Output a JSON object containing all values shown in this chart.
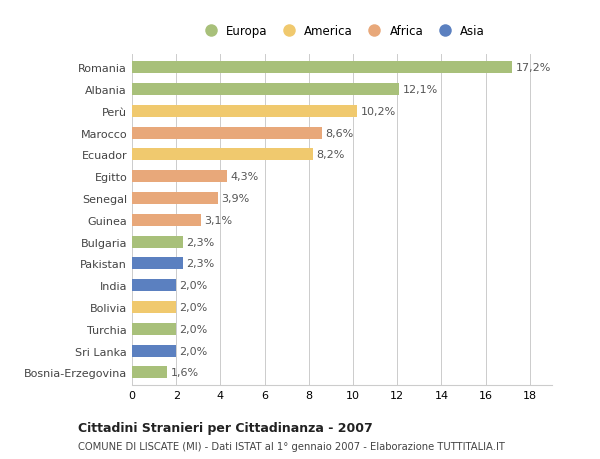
{
  "countries": [
    "Romania",
    "Albania",
    "Perù",
    "Marocco",
    "Ecuador",
    "Egitto",
    "Senegal",
    "Guinea",
    "Bulgaria",
    "Pakistan",
    "India",
    "Bolivia",
    "Turchia",
    "Sri Lanka",
    "Bosnia-Erzegovina"
  ],
  "values": [
    17.2,
    12.1,
    10.2,
    8.6,
    8.2,
    4.3,
    3.9,
    3.1,
    2.3,
    2.3,
    2.0,
    2.0,
    2.0,
    2.0,
    1.6
  ],
  "labels": [
    "17,2%",
    "12,1%",
    "10,2%",
    "8,6%",
    "8,2%",
    "4,3%",
    "3,9%",
    "3,1%",
    "2,3%",
    "2,3%",
    "2,0%",
    "2,0%",
    "2,0%",
    "2,0%",
    "1,6%"
  ],
  "continents": [
    "Europa",
    "Europa",
    "America",
    "Africa",
    "America",
    "Africa",
    "Africa",
    "Africa",
    "Europa",
    "Asia",
    "Asia",
    "America",
    "Europa",
    "Asia",
    "Europa"
  ],
  "colors": {
    "Europa": "#a8c07a",
    "America": "#f0c96e",
    "Africa": "#e8a87a",
    "Asia": "#5b80c0"
  },
  "legend_order": [
    "Europa",
    "America",
    "Africa",
    "Asia"
  ],
  "title": "Cittadini Stranieri per Cittadinanza - 2007",
  "subtitle": "COMUNE DI LISCATE (MI) - Dati ISTAT al 1° gennaio 2007 - Elaborazione TUTTITALIA.IT",
  "xlim": [
    0,
    19
  ],
  "xticks": [
    0,
    2,
    4,
    6,
    8,
    10,
    12,
    14,
    16,
    18
  ],
  "background_color": "#ffffff",
  "grid_color": "#cccccc",
  "bar_height": 0.55,
  "label_fontsize": 8,
  "ytick_fontsize": 8,
  "xtick_fontsize": 8
}
